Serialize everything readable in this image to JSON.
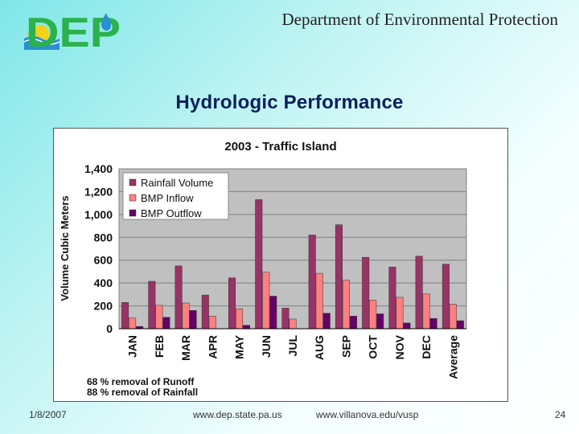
{
  "header": {
    "logo_text": "DEP",
    "organization": "Department of Environmental Protection"
  },
  "slide": {
    "title": "Hydrologic Performance"
  },
  "chart_data": {
    "type": "bar",
    "title": "2003 - Traffic Island",
    "xlabel": "",
    "ylabel": "Volume Cubic Meters",
    "ylim": [
      0,
      1400
    ],
    "yticks": [
      "0",
      "200",
      "400",
      "600",
      "800",
      "1,000",
      "1,200",
      "1,400"
    ],
    "ytick_values": [
      0,
      200,
      400,
      600,
      800,
      1000,
      1200,
      1400
    ],
    "grid": true,
    "legend": "top-left",
    "categories": [
      "JAN",
      "FEB",
      "MAR",
      "APR",
      "MAY",
      "JUN",
      "JUL",
      "AUG",
      "SEP",
      "OCT",
      "NOV",
      "DEC",
      "Average"
    ],
    "series": [
      {
        "name": "Rainfall Volume",
        "color": "#993366",
        "values": [
          230,
          415,
          550,
          295,
          445,
          1130,
          180,
          820,
          910,
          625,
          540,
          635,
          565
        ]
      },
      {
        "name": "BMP Inflow",
        "color": "#ff8080",
        "values": [
          95,
          205,
          225,
          110,
          175,
          495,
          85,
          485,
          425,
          250,
          275,
          305,
          215
        ]
      },
      {
        "name": "BMP Outflow",
        "color": "#660066",
        "values": [
          20,
          100,
          160,
          0,
          30,
          285,
          0,
          135,
          110,
          130,
          50,
          90,
          70
        ]
      }
    ],
    "annotations": [
      "68 % removal of Runoff",
      "88 % removal of Rainfall"
    ]
  },
  "footer": {
    "date": "1/8/2007",
    "url1": "www.dep.state.pa.us",
    "url2": "www.villanova.edu/vusp",
    "page": "24"
  }
}
